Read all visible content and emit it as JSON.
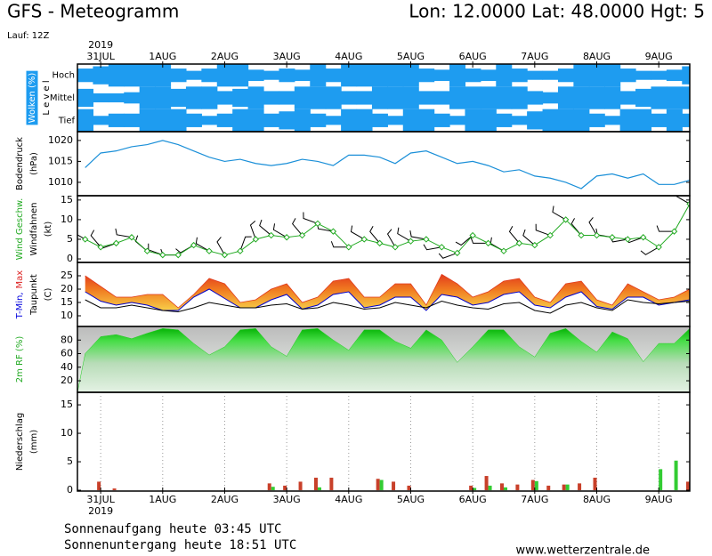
{
  "header": {
    "title": "GFS - Meteogramm",
    "location": "Lon: 12.0000 Lat: 48.0000 Hgt: 5",
    "run": "Lauf: 12Z"
  },
  "footer": {
    "sunrise": "Sonnenaufgang heute 03:45 UTC",
    "sunset": "Sonnenuntergang heute 18:51 UTC",
    "source": "www.wetterzentrale.de"
  },
  "chart_data": [
    {
      "type": "cloud",
      "ylabels": [
        [
          {
            "text": "Wolken (%)",
            "color": "#ffffff"
          }
        ],
        [
          {
            "text": "L e v e l"
          }
        ]
      ],
      "year": "2019",
      "xlim": [
        -0.375,
        9.5
      ],
      "xticks": [
        {
          "value": 0,
          "label": "31JUL"
        },
        {
          "value": 1,
          "label": "1AUG"
        },
        {
          "value": 2,
          "label": "2AUG"
        },
        {
          "value": 3,
          "label": "3AUG"
        },
        {
          "value": 4,
          "label": "4AUG"
        },
        {
          "value": 5,
          "label": "5AUG"
        },
        {
          "value": 6,
          "label": "6AUG"
        },
        {
          "value": 7,
          "label": "7AUG"
        },
        {
          "value": 8,
          "label": "8AUG"
        },
        {
          "value": 9,
          "label": "9AUG"
        }
      ],
      "x": [
        -0.25,
        0,
        0.25,
        0.5,
        0.75,
        1,
        1.25,
        1.5,
        1.75,
        2,
        2.25,
        2.5,
        2.75,
        3,
        3.25,
        3.5,
        3.75,
        4,
        4.25,
        4.5,
        4.75,
        5,
        5.25,
        5.5,
        5.75,
        6,
        6.25,
        6.5,
        6.75,
        7,
        7.25,
        7.5,
        7.75,
        8,
        8.25,
        8.5,
        8.75,
        9,
        9.25,
        9.5
      ],
      "series": [
        {
          "name": "Hoch",
          "color": "#1e9cf0",
          "values": [
            60,
            80,
            100,
            100,
            100,
            100,
            60,
            40,
            60,
            100,
            100,
            50,
            40,
            60,
            50,
            100,
            60,
            100,
            100,
            100,
            100,
            100,
            60,
            50,
            100,
            60,
            50,
            100,
            60,
            40,
            40,
            60,
            100,
            100,
            100,
            60,
            40,
            40,
            50,
            80
          ]
        },
        {
          "name": "Mittel",
          "color": "#1e9cf0",
          "values": [
            80,
            40,
            40,
            50,
            100,
            100,
            80,
            100,
            100,
            60,
            80,
            100,
            60,
            60,
            100,
            100,
            100,
            60,
            60,
            100,
            100,
            100,
            60,
            60,
            100,
            100,
            100,
            100,
            100,
            60,
            50,
            100,
            100,
            100,
            100,
            60,
            80,
            100,
            100,
            100
          ]
        },
        {
          "name": "Tief",
          "color": "#1e9cf0",
          "values": [
            100,
            40,
            60,
            60,
            100,
            100,
            100,
            60,
            40,
            60,
            100,
            100,
            60,
            80,
            100,
            60,
            40,
            100,
            100,
            60,
            40,
            100,
            100,
            60,
            40,
            100,
            100,
            60,
            40,
            80,
            100,
            100,
            100,
            60,
            40,
            100,
            100,
            60,
            100,
            60
          ]
        }
      ]
    },
    {
      "type": "line",
      "ylabels": [
        [
          {
            "text": "Bodendruck"
          }
        ],
        [
          {
            "text": "(hPa)"
          }
        ]
      ],
      "xlim": [
        -0.375,
        9.5
      ],
      "ylim": [
        1006.8,
        1022.1
      ],
      "yticks": [
        1010,
        1015,
        1020
      ],
      "x": [
        -0.25,
        0,
        0.25,
        0.5,
        0.75,
        1,
        1.25,
        1.5,
        1.75,
        2,
        2.25,
        2.5,
        2.75,
        3,
        3.25,
        3.5,
        3.75,
        4,
        4.25,
        4.5,
        4.75,
        5,
        5.25,
        5.5,
        5.75,
        6,
        6.25,
        6.5,
        6.75,
        7,
        7.25,
        7.5,
        7.75,
        8,
        8.25,
        8.5,
        8.75,
        9,
        9.25,
        9.5
      ],
      "series": [
        {
          "color": "#1a8fd8",
          "values": [
            1013.5,
            1017,
            1017.5,
            1018.5,
            1019,
            1020,
            1019,
            1017.5,
            1016,
            1015,
            1015.5,
            1014.5,
            1014,
            1014.5,
            1015.5,
            1015,
            1014,
            1016.5,
            1016.5,
            1016,
            1014.5,
            1017,
            1017.5,
            1016,
            1014.5,
            1015,
            1014,
            1012.5,
            1013,
            1011.5,
            1011,
            1010,
            1008.5,
            1011.5,
            1012,
            1011,
            1012,
            1009.5,
            1009.5,
            1010.5
          ]
        }
      ]
    },
    {
      "type": "wind",
      "ylabels": [
        [
          {
            "text": "Wind Geschw.",
            "color": "#22aa22"
          }
        ],
        [
          {
            "text": "Windfahnen"
          }
        ],
        [
          {
            "text": "(kt)"
          }
        ]
      ],
      "xlim": [
        -0.375,
        9.5
      ],
      "ylim": [
        -0.9,
        16.1
      ],
      "yticks": [
        0,
        5,
        10,
        15
      ],
      "x": [
        -0.25,
        0,
        0.25,
        0.5,
        0.75,
        1,
        1.25,
        1.5,
        1.75,
        2,
        2.25,
        2.5,
        2.75,
        3,
        3.25,
        3.5,
        3.75,
        4,
        4.25,
        4.5,
        4.75,
        5,
        5.25,
        5.5,
        5.75,
        6,
        6.25,
        6.5,
        6.75,
        7,
        7.25,
        7.5,
        7.75,
        8,
        8.25,
        8.5,
        8.75,
        9,
        9.25,
        9.5
      ],
      "series": [
        {
          "color": "#22aa22",
          "values": [
            5,
            3,
            4,
            5.5,
            2,
            1,
            1,
            3.5,
            2,
            1,
            2,
            5,
            6,
            5.5,
            6,
            9,
            7,
            3,
            5,
            4,
            3,
            4.5,
            5,
            3,
            1.5,
            6,
            4,
            2,
            4,
            3.5,
            6,
            10,
            6,
            6,
            5.5,
            5,
            5.5,
            3,
            7,
            14
          ]
        }
      ],
      "directions": {
        "color": "#000000",
        "values": [
          300,
          320,
          250,
          280,
          310,
          290,
          270,
          240,
          300,
          330,
          20,
          340,
          310,
          300,
          320,
          290,
          280,
          270,
          300,
          320,
          330,
          300,
          280,
          260,
          250,
          230,
          270,
          300,
          320,
          310,
          290,
          300,
          320,
          330,
          280,
          260,
          250,
          240,
          270,
          300
        ]
      }
    },
    {
      "type": "range",
      "ylabels": [
        [
          {
            "text": "T-Min,",
            "color": "#0000dd"
          },
          {
            "text": "Max",
            "color": "#dd2222"
          }
        ],
        [
          {
            "text": "Taupunkt"
          }
        ],
        [
          {
            "text": "(C)"
          }
        ]
      ],
      "xlim": [
        -0.375,
        9.5
      ],
      "ylim": [
        6,
        30
      ],
      "yticks": [
        10,
        15,
        20,
        25
      ],
      "x": [
        -0.25,
        0,
        0.25,
        0.5,
        0.75,
        1,
        1.25,
        1.5,
        1.75,
        2,
        2.25,
        2.5,
        2.75,
        3,
        3.25,
        3.5,
        3.75,
        4,
        4.25,
        4.5,
        4.75,
        5,
        5.25,
        5.5,
        5.75,
        6,
        6.25,
        6.5,
        6.75,
        7,
        7.25,
        7.5,
        7.75,
        8,
        8.25,
        8.5,
        8.75,
        9,
        9.25,
        9.5
      ],
      "series": [
        {
          "color": "#e03a1c",
          "values": [
            25,
            21,
            17,
            17,
            18,
            18,
            13,
            18,
            24,
            22,
            15,
            16,
            20,
            22,
            15,
            17,
            23,
            24,
            17,
            17,
            22,
            22,
            14,
            25.5,
            22,
            17,
            19,
            23,
            24,
            17,
            15,
            22,
            23,
            16,
            14,
            22,
            19,
            16,
            17,
            20
          ]
        },
        {
          "color": "#0000cc",
          "values": [
            19,
            15.5,
            14,
            15,
            14,
            12,
            12,
            17,
            20,
            16.5,
            13,
            13,
            16,
            18,
            12.5,
            14,
            18,
            19,
            13,
            14,
            17,
            17,
            12,
            18,
            17,
            14,
            15,
            18,
            19,
            14,
            13,
            17,
            19,
            13.5,
            12.5,
            17,
            17,
            14,
            15,
            16
          ]
        },
        {
          "color": "#000000",
          "values": [
            16,
            13,
            13,
            14,
            13,
            12,
            11.5,
            13,
            15,
            14,
            13,
            13,
            14,
            14.5,
            12.5,
            13,
            15,
            14,
            12.5,
            13,
            15,
            14,
            13,
            15.5,
            14,
            13,
            12.5,
            14.5,
            15,
            12,
            11,
            14,
            15,
            13,
            12,
            16,
            15,
            14.5,
            15,
            15.5
          ]
        }
      ]
    },
    {
      "type": "area",
      "ylabels": [
        [
          {
            "text": "2m RF (%)",
            "color": "#22aa22"
          }
        ]
      ],
      "xlim": [
        -0.375,
        9.5
      ],
      "ylim": [
        3,
        100
      ],
      "yticks": [
        20,
        40,
        60,
        80
      ],
      "x": [
        -0.25,
        0,
        0.25,
        0.5,
        0.75,
        1,
        1.25,
        1.5,
        1.75,
        2,
        2.25,
        2.5,
        2.75,
        3,
        3.25,
        3.5,
        3.75,
        4,
        4.25,
        4.5,
        4.75,
        5,
        5.25,
        5.5,
        5.75,
        6,
        6.25,
        6.5,
        6.75,
        7,
        7.25,
        7.5,
        7.75,
        8,
        8.25,
        8.5,
        8.75,
        9,
        9.25,
        9.5
      ],
      "series": [
        {
          "color": "#22cc22",
          "values": [
            60,
            85,
            88,
            82,
            90,
            97,
            95,
            75,
            58,
            70,
            95,
            97,
            70,
            56,
            95,
            97,
            80,
            65,
            95,
            95,
            78,
            68,
            95,
            80,
            47,
            70,
            95,
            95,
            70,
            55,
            90,
            97,
            78,
            62,
            92,
            82,
            48,
            75,
            75,
            97
          ]
        }
      ]
    },
    {
      "type": "bar",
      "ylabels": [
        [
          {
            "text": "Niederschlag"
          }
        ],
        [
          {
            "text": "(mm)"
          }
        ]
      ],
      "year": "2019",
      "grid": true,
      "xlim": [
        -0.375,
        9.5
      ],
      "ylim": [
        -0.15,
        17.2
      ],
      "yticks": [
        0,
        5,
        10,
        15
      ],
      "xticks": [
        {
          "value": 0,
          "label": "31JUL"
        },
        {
          "value": 1,
          "label": "1AUG"
        },
        {
          "value": 2,
          "label": "2AUG"
        },
        {
          "value": 3,
          "label": "3AUG"
        },
        {
          "value": 4,
          "label": "4AUG"
        },
        {
          "value": 5,
          "label": "5AUG"
        },
        {
          "value": 6,
          "label": "6AUG"
        },
        {
          "value": 7,
          "label": "7AUG"
        },
        {
          "value": 8,
          "label": "8AUG"
        },
        {
          "value": 9,
          "label": "9AUG"
        }
      ],
      "x": [
        -0.25,
        0,
        0.25,
        0.5,
        0.75,
        1,
        1.25,
        1.5,
        1.75,
        2,
        2.25,
        2.5,
        2.75,
        3,
        3.25,
        3.5,
        3.75,
        4,
        4.25,
        4.5,
        4.75,
        5,
        5.25,
        5.5,
        5.75,
        6,
        6.25,
        6.5,
        6.75,
        7,
        7.25,
        7.5,
        7.75,
        8,
        8.25,
        8.5,
        8.75,
        9,
        9.25,
        9.5
      ],
      "series": [
        {
          "color": "#c8402a",
          "values": [
            0,
            1.5,
            0.3,
            0,
            0,
            0,
            0,
            0,
            0,
            0,
            0,
            0,
            1.2,
            0.8,
            1.5,
            2.2,
            2.2,
            0,
            0,
            2,
            1.5,
            0.8,
            0,
            0,
            0,
            0.8,
            2.5,
            1.2,
            1,
            1.8,
            0.8,
            1,
            1.2,
            2.2,
            0,
            0,
            0,
            0,
            0,
            1.5
          ]
        },
        {
          "color": "#33cc33",
          "values": [
            0,
            0,
            0,
            0,
            0,
            0,
            0,
            0,
            0,
            0,
            0,
            0,
            0.6,
            0,
            0,
            0.5,
            0,
            0,
            0,
            1.8,
            0,
            0,
            0,
            0,
            0,
            0.4,
            0.8,
            0.5,
            0,
            1.6,
            0,
            1,
            0,
            0,
            0,
            0,
            0,
            3.7,
            5.2,
            3
          ]
        }
      ]
    }
  ]
}
